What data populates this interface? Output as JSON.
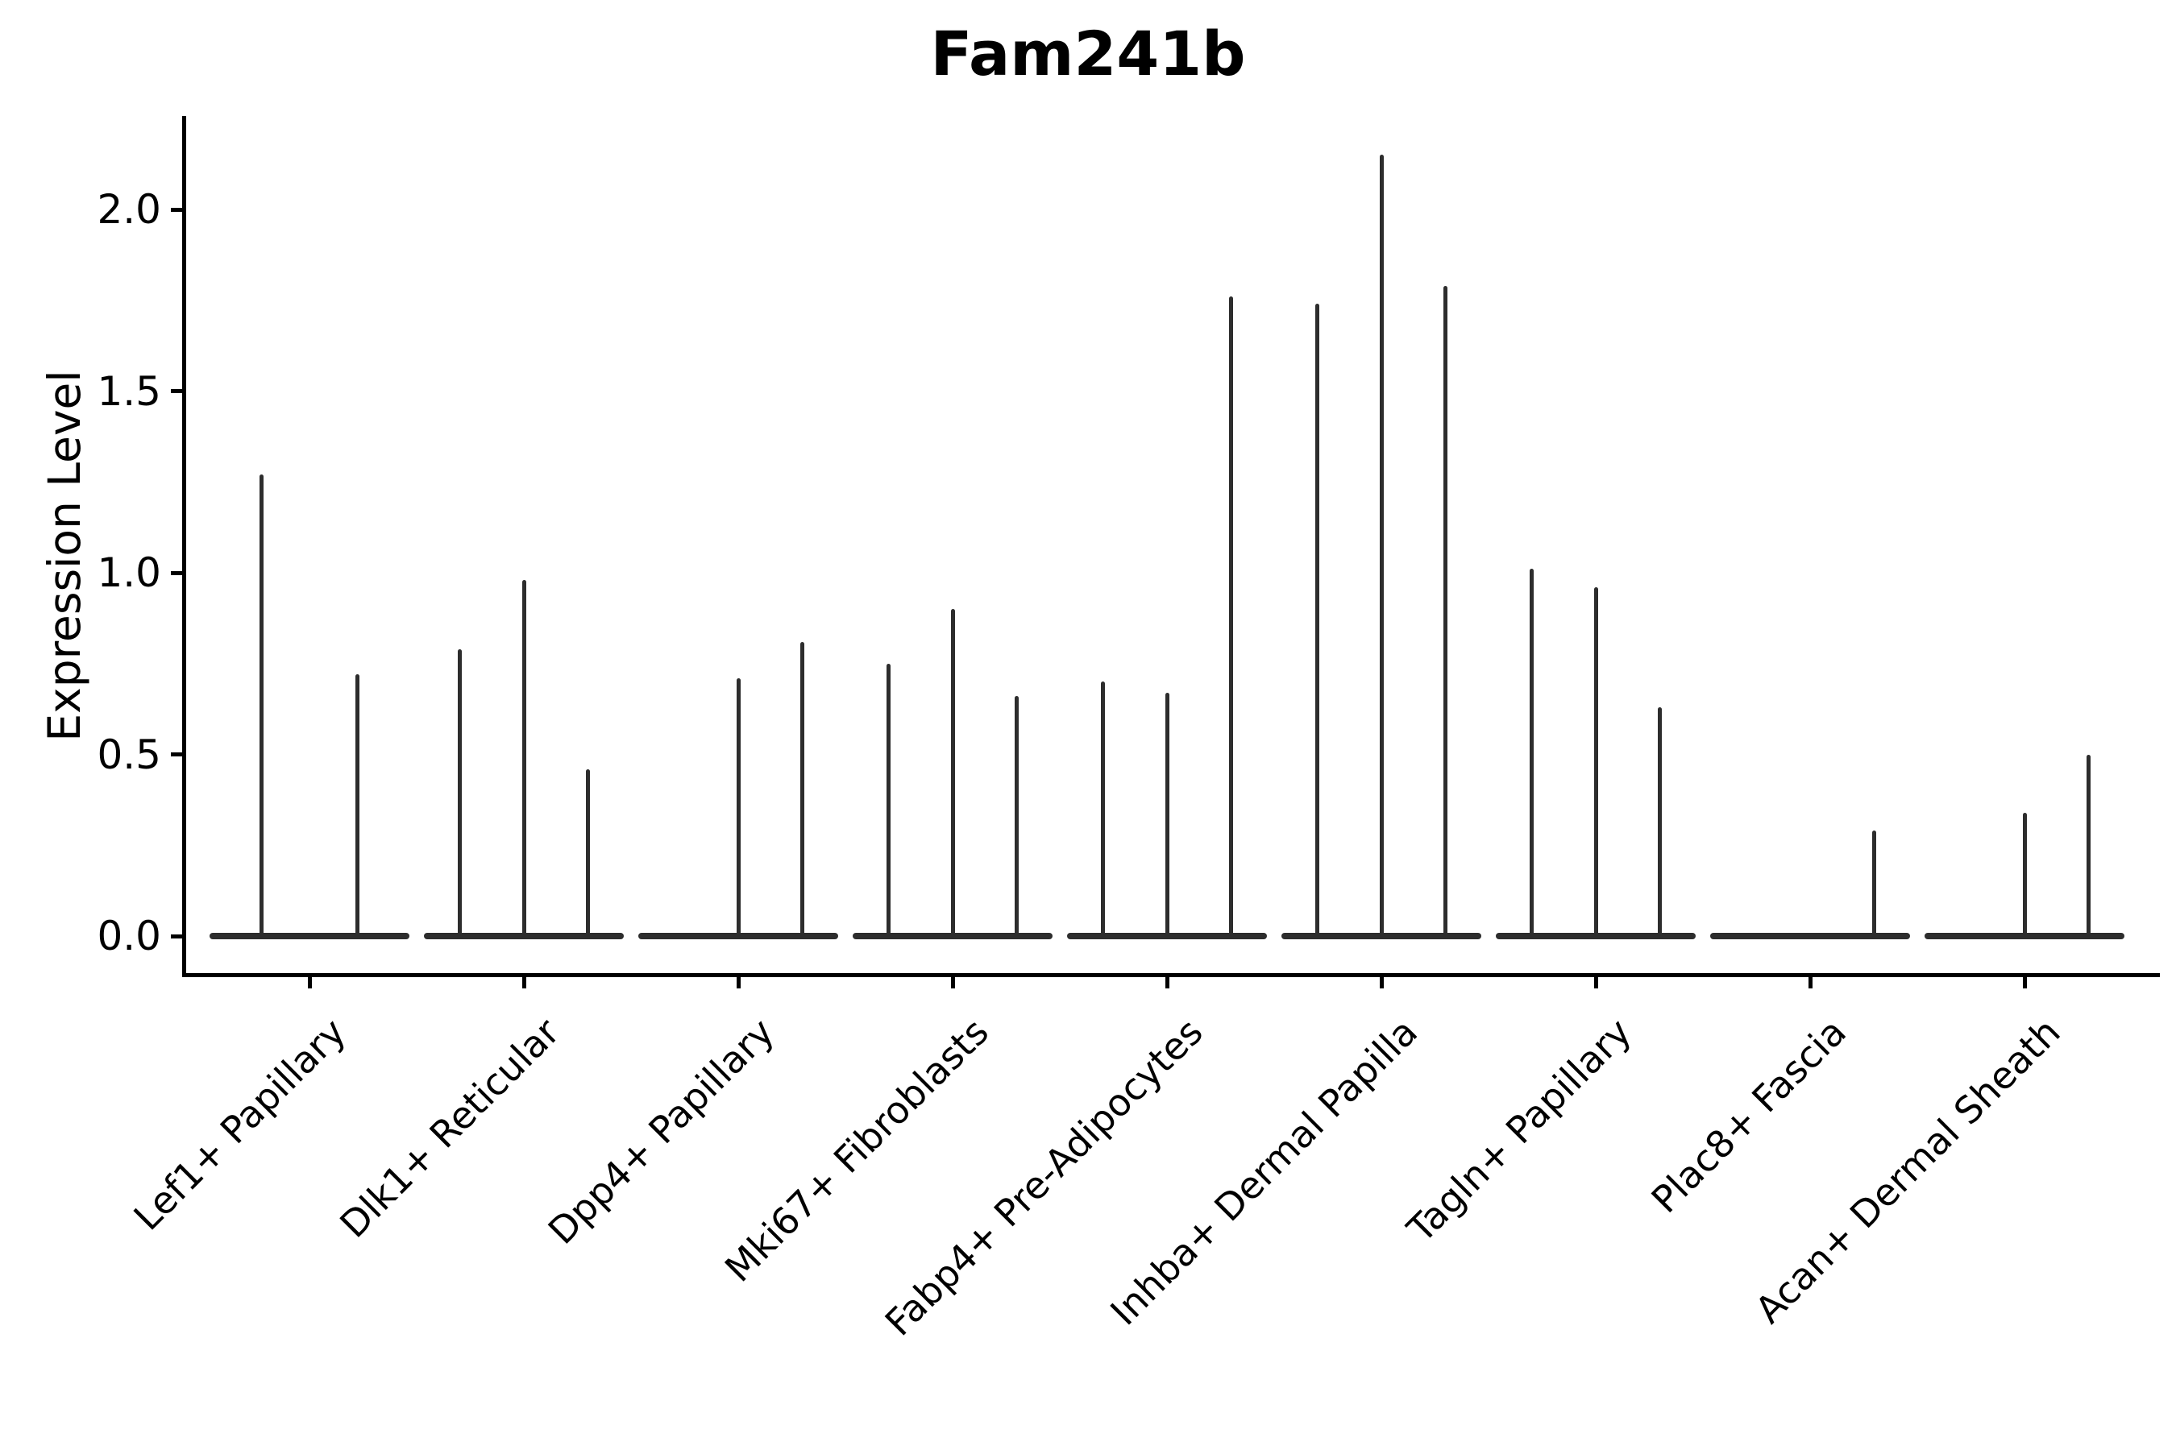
{
  "chart_data": {
    "type": "violin",
    "title": "Fam241b",
    "ylabel": "Expression Level",
    "xlabel": "",
    "yticks": [
      "0.0",
      "0.5",
      "1.0",
      "1.5",
      "2.0"
    ],
    "ytick_values": [
      0.0,
      0.5,
      1.0,
      1.5,
      2.0
    ],
    "ylim": [
      -0.11,
      2.26
    ],
    "grid": false,
    "legend": "none",
    "violin_color": "#2d2d2d",
    "axis_color": "#000000",
    "background_color": "#ffffff",
    "categories": [
      "Lef1+ Papillary",
      "Dlk1+ Reticular",
      "Dpp4+ Papillary",
      "Mki67+ Fibroblasts",
      "Fabp4+ Pre-Adipocytes",
      "Inhba+ Dermal Papilla",
      "Tagln+ Papillary",
      "Plac8+ Fascia",
      "Acan+ Dermal Sheath"
    ],
    "series": [
      {
        "category": "Lef1+ Papillary",
        "violin_maxima": [
          1.27,
          0.72
        ]
      },
      {
        "category": "Dlk1+ Reticular",
        "violin_maxima": [
          0.79,
          0.98,
          0.46
        ]
      },
      {
        "category": "Dpp4+ Papillary",
        "violin_maxima": [
          0.0,
          0.71,
          0.81
        ]
      },
      {
        "category": "Mki67+ Fibroblasts",
        "violin_maxima": [
          0.75,
          0.9,
          0.66
        ]
      },
      {
        "category": "Fabp4+ Pre-Adipocytes",
        "violin_maxima": [
          0.7,
          0.67,
          1.76
        ]
      },
      {
        "category": "Inhba+ Dermal Papilla",
        "violin_maxima": [
          1.74,
          2.15,
          1.79
        ]
      },
      {
        "category": "Tagln+ Papillary",
        "violin_maxima": [
          1.01,
          0.96,
          0.63
        ]
      },
      {
        "category": "Plac8+ Fascia",
        "violin_maxima": [
          0.0,
          0.0,
          0.29
        ]
      },
      {
        "category": "Acan+ Dermal Sheath",
        "violin_maxima": [
          0.0,
          0.34,
          0.5
        ]
      }
    ]
  }
}
